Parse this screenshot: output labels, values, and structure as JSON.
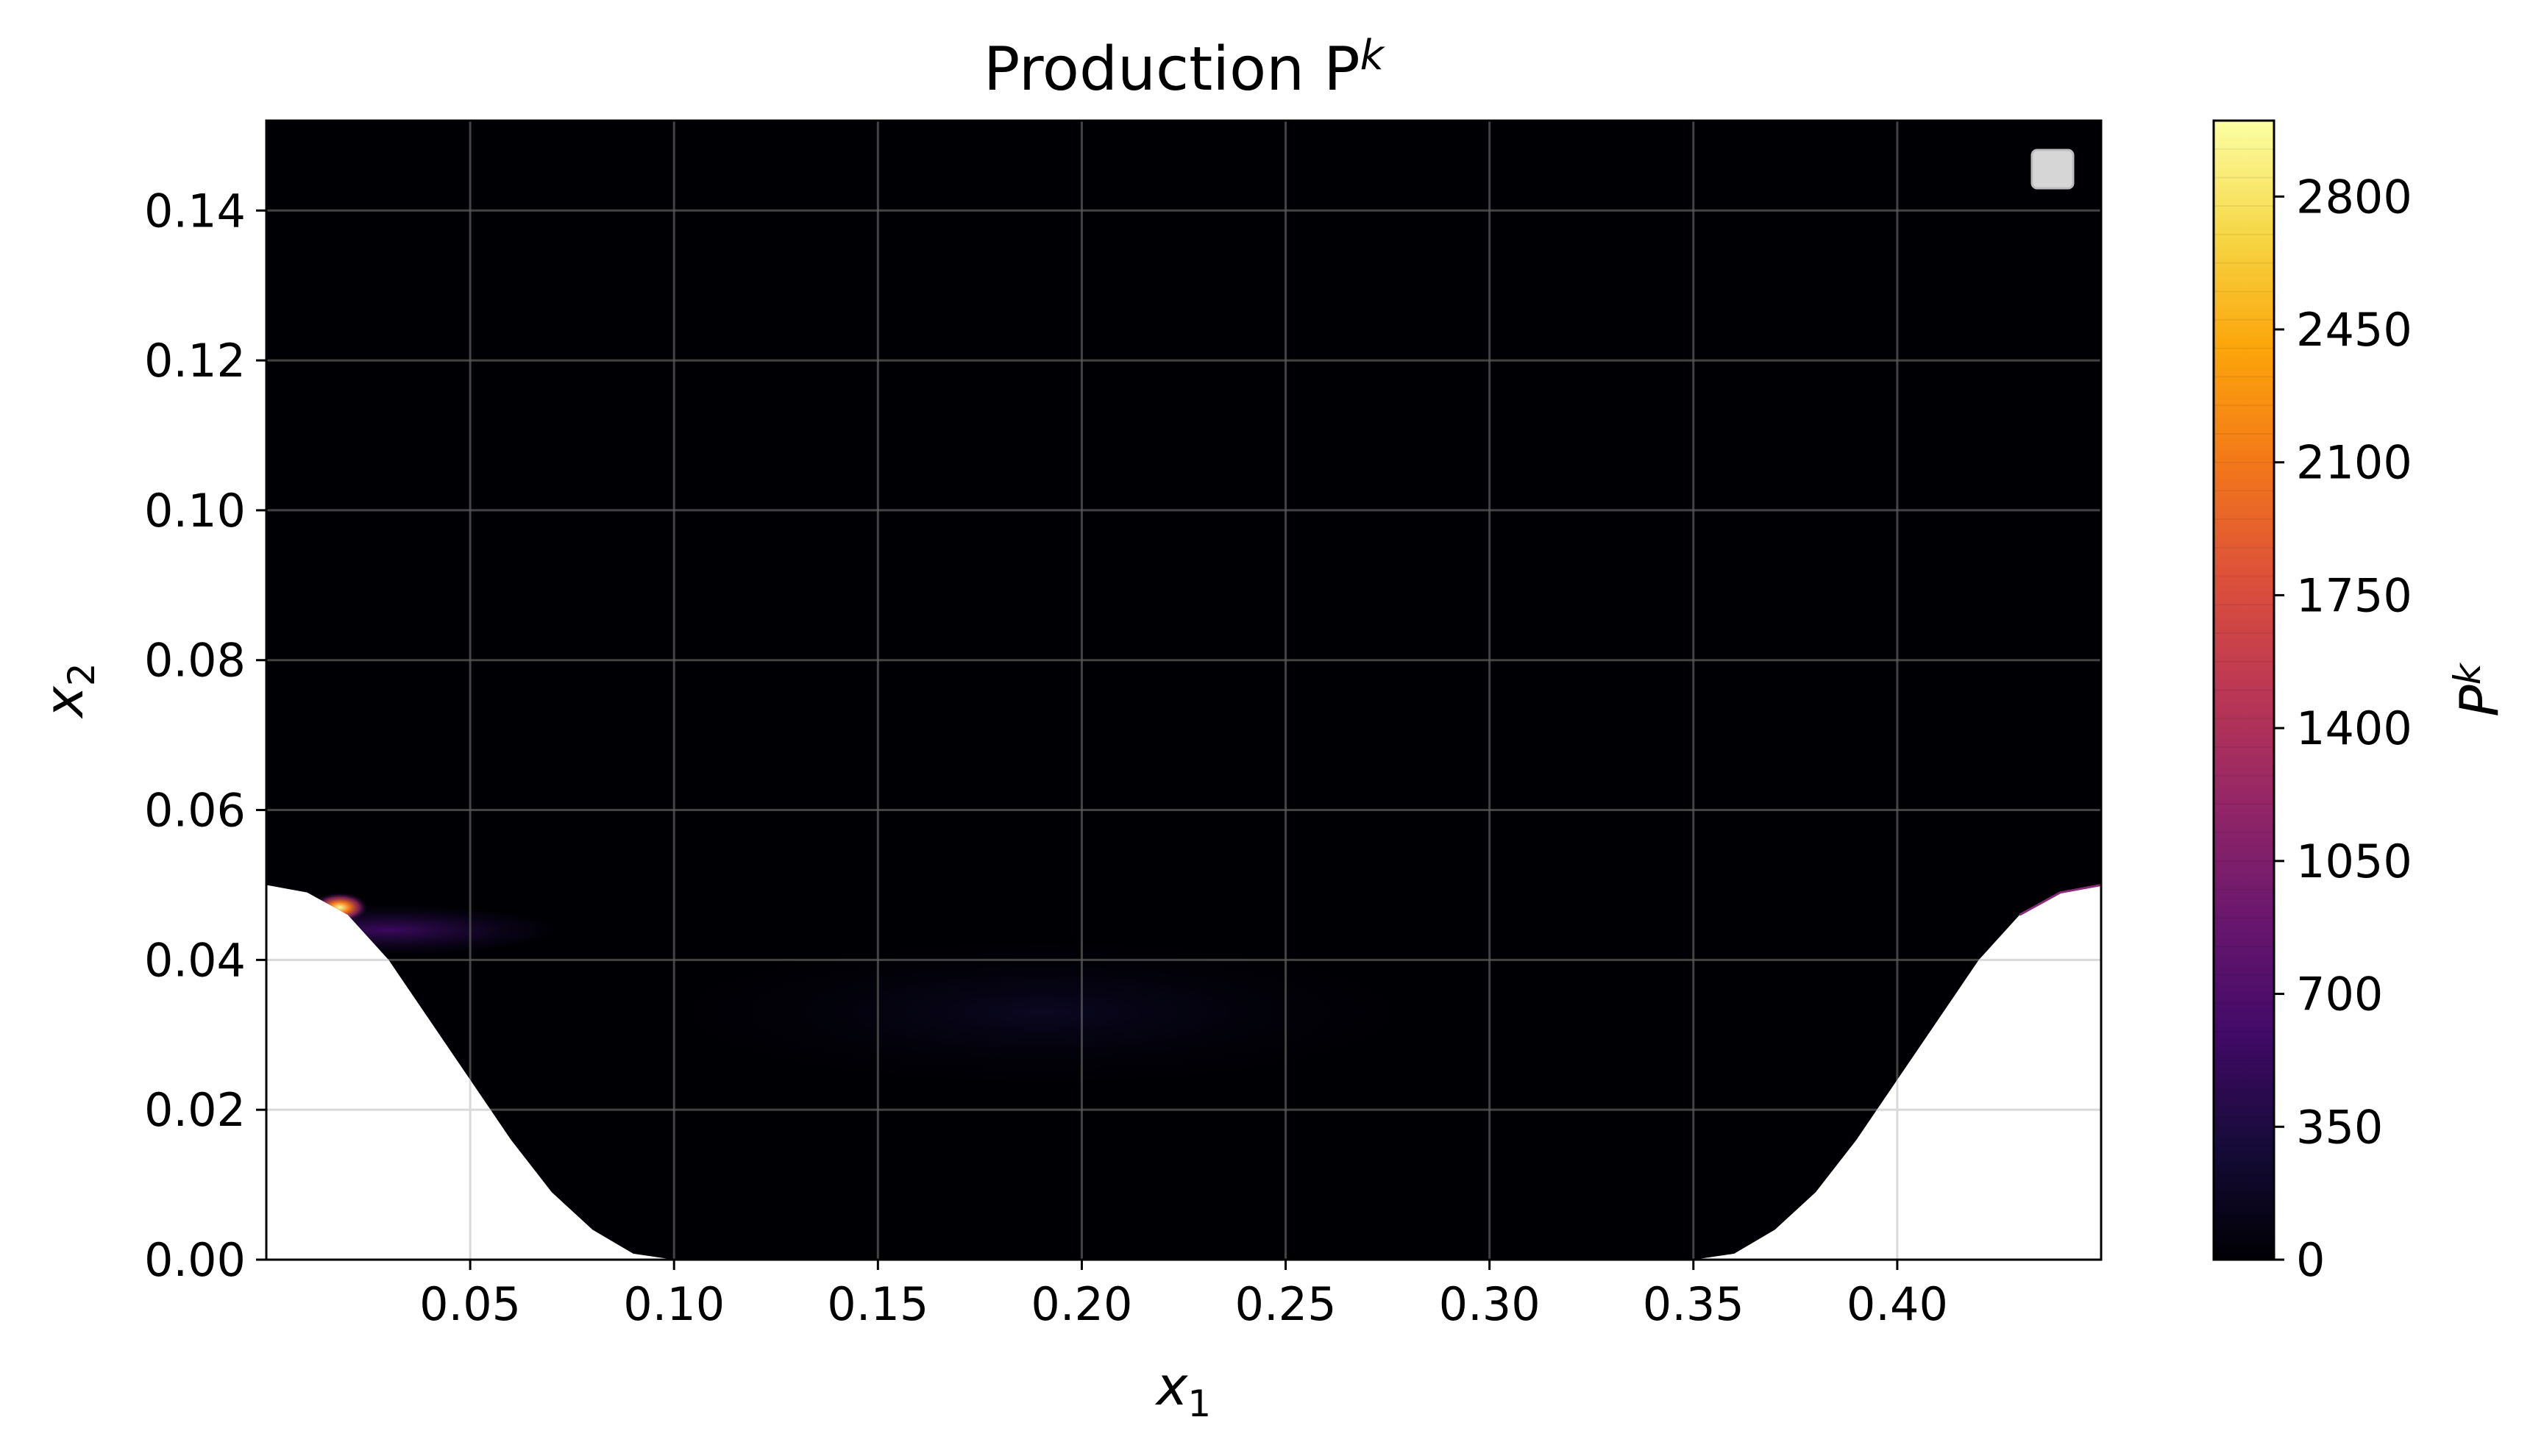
{
  "chart_data": {
    "type": "heatmap",
    "title": "Production P",
    "title_sup": "k",
    "xlabel": "x",
    "xlabel_sub": "1",
    "ylabel": "x",
    "ylabel_sub": "2",
    "xlim": [
      0.0,
      0.45
    ],
    "ylim": [
      0.0,
      0.152
    ],
    "xticks": [
      0.05,
      0.1,
      0.15,
      0.2,
      0.25,
      0.3,
      0.35,
      0.4
    ],
    "xtick_labels": [
      "0.05",
      "0.10",
      "0.15",
      "0.20",
      "0.25",
      "0.30",
      "0.35",
      "0.40"
    ],
    "yticks": [
      0.0,
      0.02,
      0.04,
      0.06,
      0.08,
      0.1,
      0.12,
      0.14
    ],
    "ytick_labels": [
      "0.00",
      "0.02",
      "0.04",
      "0.06",
      "0.08",
      "0.10",
      "0.12",
      "0.14"
    ],
    "grid": true,
    "legend": "top-right (empty)",
    "colormap": "inferno",
    "colorbar": {
      "label": "P",
      "label_sup": "k",
      "range": [
        0,
        3000
      ],
      "ticks": [
        0,
        350,
        700,
        1050,
        1400,
        1750,
        2100,
        2450,
        2800
      ],
      "tick_labels": [
        "0",
        "350",
        "700",
        "1050",
        "1400",
        "1750",
        "2100",
        "2450",
        "2800"
      ]
    },
    "background_value": 0,
    "hotspots": [
      {
        "x": 0.018,
        "x2": 0.047,
        "value": 2900
      },
      {
        "x": 0.03,
        "x2": 0.044,
        "value": 300
      },
      {
        "x": 0.19,
        "x2": 0.033,
        "value": 60
      },
      {
        "x": 0.449,
        "x2": 0.05,
        "value": 900
      }
    ],
    "bottom_boundary": {
      "x": [
        0.0,
        0.01,
        0.02,
        0.03,
        0.04,
        0.05,
        0.06,
        0.07,
        0.08,
        0.09,
        0.1,
        0.35,
        0.36,
        0.37,
        0.38,
        0.39,
        0.4,
        0.41,
        0.42,
        0.43,
        0.44,
        0.45
      ],
      "y": [
        0.05,
        0.049,
        0.046,
        0.04,
        0.032,
        0.024,
        0.016,
        0.009,
        0.004,
        0.0008,
        0.0,
        0.0,
        0.0008,
        0.004,
        0.009,
        0.016,
        0.024,
        0.032,
        0.04,
        0.046,
        0.049,
        0.05
      ]
    }
  }
}
